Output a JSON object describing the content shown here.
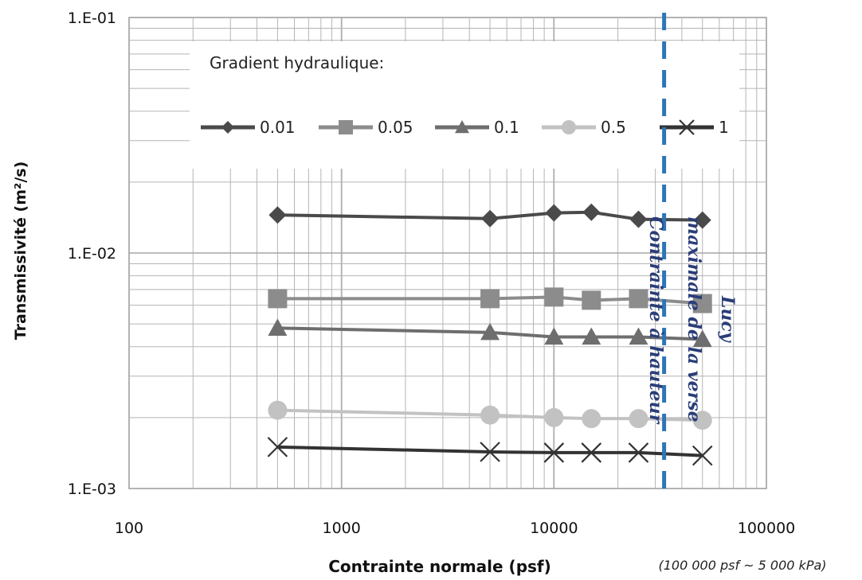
{
  "chart_data": {
    "type": "line",
    "title": "",
    "xlabel": "Contrainte normale (psf)",
    "ylabel": "Transmissivité (m²/s)",
    "x_scale": "log",
    "y_scale": "log",
    "xlim": [
      100,
      100000
    ],
    "ylim": [
      0.001,
      0.1
    ],
    "x_ticks": [
      "100",
      "1000",
      "10000",
      "100000"
    ],
    "y_ticks": [
      "1.E-01",
      "1.E-02",
      "1.E-03"
    ],
    "grid": true,
    "legend_title": "Gradient hydraulique:",
    "legend_position": "top",
    "x": [
      500,
      5000,
      10000,
      15000,
      25000,
      50000
    ],
    "series": [
      {
        "name": "0.01",
        "values": [
          0.0145,
          0.014,
          0.0148,
          0.0149,
          0.0139,
          0.0138
        ],
        "color": "#4a4a4a",
        "marker": "diamond"
      },
      {
        "name": "0.05",
        "values": [
          0.0064,
          0.0064,
          0.0065,
          0.0063,
          0.0064,
          0.0061
        ],
        "color": "#8c8c8c",
        "marker": "square"
      },
      {
        "name": "0.1",
        "values": [
          0.0048,
          0.0046,
          0.0044,
          0.0044,
          0.0044,
          0.0043
        ],
        "color": "#6e6e6e",
        "marker": "triangle"
      },
      {
        "name": "0.5",
        "values": [
          0.00215,
          0.00205,
          0.002,
          0.00198,
          0.00198,
          0.00195
        ],
        "color": "#c2c2c2",
        "marker": "circle"
      },
      {
        "name": "1",
        "values": [
          0.0015,
          0.00143,
          0.00142,
          0.00142,
          0.00142,
          0.00138
        ],
        "color": "#333333",
        "marker": "x"
      }
    ],
    "reference_line": {
      "x": 33000,
      "label_lines": [
        "Contrainte à hauteur",
        "maximale de la verse",
        "Lucy"
      ],
      "color": "#2e75b6"
    },
    "note": "(100 000 psf ~ 5 000 kPa)"
  }
}
